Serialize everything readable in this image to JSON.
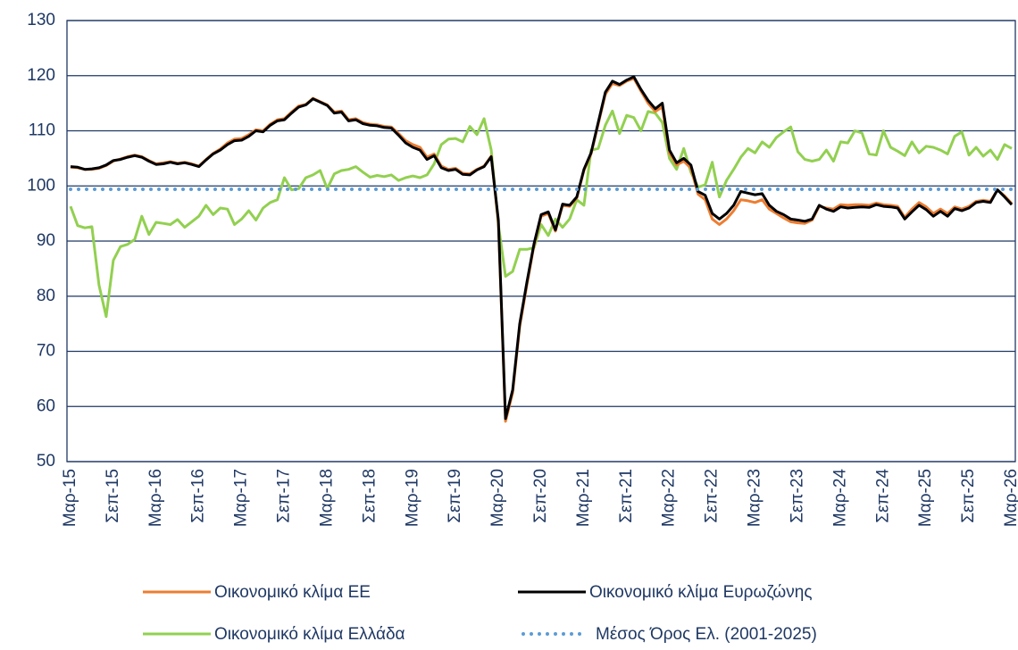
{
  "chart_data": {
    "type": "line",
    "categories": [
      "Μαρ-15",
      null,
      null,
      null,
      null,
      null,
      "Σεπ-15",
      null,
      null,
      null,
      null,
      null,
      "Μαρ-16",
      null,
      null,
      null,
      null,
      null,
      "Σεπ-16",
      null,
      null,
      null,
      null,
      null,
      "Μαρ-17",
      null,
      null,
      null,
      null,
      null,
      "Σεπ-17",
      null,
      null,
      null,
      null,
      null,
      "Μαρ-18",
      null,
      null,
      null,
      null,
      null,
      "Σεπ-18",
      null,
      null,
      null,
      null,
      null,
      "Μαρ-19",
      null,
      null,
      null,
      null,
      null,
      "Σεπ-19",
      null,
      null,
      null,
      null,
      null,
      "Μαρ-20",
      null,
      null,
      null,
      null,
      null,
      "Σεπ-20",
      null,
      null,
      null,
      null,
      null,
      "Μαρ-21",
      null,
      null,
      null,
      null,
      null,
      "Σεπ-21",
      null,
      null,
      null,
      null,
      null,
      "Μαρ-22",
      null,
      null,
      null,
      null,
      null,
      "Σεπ-22",
      null,
      null,
      null,
      null,
      null,
      "Μαρ-23",
      null,
      null,
      null,
      null,
      null,
      "Σεπ-23",
      null,
      null,
      null,
      null,
      null,
      "Μαρ-24",
      null,
      null,
      null,
      null,
      null,
      "Σεπ-24",
      null,
      null,
      null,
      null,
      null,
      "Μαρ-25",
      null,
      null,
      null,
      null,
      null,
      "Σεπ-25",
      null,
      null,
      null,
      null,
      null,
      "Μαρ-26"
    ],
    "series": [
      {
        "name": "Οικονομικό κλίμα ΕΕ",
        "color": "#ed7d31",
        "values": [
          103.4,
          103.3,
          103.0,
          103.0,
          103.2,
          103.7,
          104.5,
          104.9,
          105.3,
          105.6,
          105.3,
          104.6,
          104.0,
          104.2,
          104.4,
          104.1,
          104.3,
          104.0,
          103.6,
          104.8,
          105.9,
          106.7,
          107.8,
          108.5,
          108.6,
          109.3,
          110.2,
          110.0,
          111.2,
          112.0,
          112.2,
          113.4,
          114.5,
          114.8,
          115.9,
          115.3,
          114.7,
          113.4,
          113.6,
          112.0,
          112.2,
          111.5,
          111.2,
          111.1,
          110.8,
          110.7,
          109.5,
          108.2,
          107.5,
          107.0,
          105.2,
          105.8,
          103.6,
          103.0,
          103.2,
          102.3,
          102.2,
          103.0,
          103.6,
          105.4,
          93.3,
          57.3,
          62.5,
          74.5,
          82.0,
          89.2,
          94.5,
          95.0,
          91.8,
          96.5,
          96.3,
          97.8,
          102.8,
          105.8,
          111.2,
          116.6,
          118.6,
          118.2,
          119.0,
          119.5,
          117.2,
          115.0,
          113.5,
          114.3,
          106.0,
          103.8,
          104.5,
          103.2,
          98.5,
          97.5,
          94.0,
          93.0,
          94.0,
          95.5,
          97.5,
          97.3,
          97.0,
          97.5,
          95.8,
          95.0,
          94.2,
          93.5,
          93.3,
          93.2,
          93.8,
          96.3,
          96.0,
          95.8,
          96.6,
          96.5,
          96.6,
          96.6,
          96.5,
          96.9,
          96.6,
          96.5,
          96.3,
          94.3,
          95.8,
          97.0,
          96.2,
          95.0,
          95.8,
          95.0,
          96.2,
          95.8,
          96.3,
          97.2,
          97.4,
          97.2,
          99.3,
          98.2,
          96.8
        ]
      },
      {
        "name": "Οικονομικό κλίμα Ευρωζώνης",
        "color": "#000000",
        "values": [
          103.5,
          103.4,
          103.0,
          103.1,
          103.3,
          103.8,
          104.6,
          104.8,
          105.2,
          105.5,
          105.2,
          104.5,
          103.9,
          104.0,
          104.3,
          104.0,
          104.2,
          103.9,
          103.5,
          104.7,
          105.8,
          106.5,
          107.5,
          108.2,
          108.3,
          109.0,
          110.0,
          109.8,
          111.0,
          111.8,
          112.0,
          113.2,
          114.3,
          114.7,
          115.8,
          115.2,
          114.6,
          113.2,
          113.4,
          111.8,
          112.0,
          111.3,
          111.0,
          110.9,
          110.6,
          110.5,
          109.2,
          107.8,
          107.0,
          106.5,
          104.8,
          105.5,
          103.3,
          102.8,
          103.0,
          102.1,
          102.0,
          102.9,
          103.5,
          105.3,
          93.8,
          57.8,
          63.0,
          75.0,
          82.5,
          89.5,
          94.8,
          95.3,
          92.0,
          96.7,
          96.5,
          98.0,
          103.0,
          106.0,
          111.5,
          117.0,
          119.0,
          118.4,
          119.2,
          119.8,
          117.5,
          115.5,
          114.0,
          115.0,
          106.5,
          104.2,
          105.0,
          103.8,
          99.0,
          98.3,
          95.0,
          94.0,
          95.0,
          96.5,
          99.0,
          98.7,
          98.4,
          98.6,
          96.5,
          95.4,
          94.8,
          94.0,
          93.8,
          93.6,
          94.0,
          96.5,
          95.8,
          95.4,
          96.2,
          96.0,
          96.1,
          96.2,
          96.1,
          96.6,
          96.3,
          96.2,
          96.0,
          94.0,
          95.3,
          96.5,
          95.7,
          94.5,
          95.4,
          94.5,
          95.9,
          95.5,
          96.0,
          97.0,
          97.2,
          97.0,
          99.3,
          98.0,
          96.6
        ]
      },
      {
        "name": "Οικονομικό κλίμα Ελλάδα",
        "color": "#92d050",
        "values": [
          96.3,
          92.8,
          92.4,
          92.6,
          82.0,
          76.3,
          86.5,
          89.0,
          89.4,
          90.3,
          94.5,
          91.2,
          93.4,
          93.2,
          93.0,
          93.9,
          92.5,
          93.5,
          94.5,
          96.5,
          94.8,
          96.0,
          95.8,
          93.0,
          94.0,
          95.5,
          93.8,
          96.0,
          97.0,
          97.5,
          101.5,
          99.3,
          99.5,
          101.5,
          102.0,
          102.8,
          99.5,
          102.2,
          102.8,
          103.0,
          103.5,
          102.5,
          101.6,
          101.9,
          101.7,
          102.0,
          101.0,
          101.5,
          101.8,
          101.5,
          102.0,
          104.0,
          107.5,
          108.5,
          108.6,
          108.0,
          110.8,
          109.3,
          112.2,
          106.5,
          93.0,
          83.6,
          84.5,
          88.5,
          88.5,
          88.8,
          93.0,
          91.0,
          94.0,
          92.5,
          94.0,
          97.5,
          96.5,
          106.5,
          106.8,
          111.0,
          113.6,
          109.5,
          112.8,
          112.4,
          110.0,
          113.5,
          113.2,
          111.5,
          105.0,
          103.0,
          106.8,
          102.5,
          99.8,
          100.2,
          104.3,
          98.0,
          101.0,
          103.0,
          105.2,
          106.8,
          106.0,
          108.0,
          107.0,
          108.8,
          109.8,
          110.7,
          106.2,
          104.8,
          104.5,
          104.8,
          106.5,
          104.5,
          108.0,
          107.8,
          110.0,
          109.6,
          105.8,
          105.6,
          110.0,
          107.0,
          106.3,
          105.5,
          108.0,
          106.0,
          107.2,
          107.0,
          106.5,
          105.8,
          109.0,
          109.8,
          105.6,
          107.0,
          105.4,
          106.5,
          104.8,
          107.5,
          106.8
        ]
      }
    ],
    "mean_line": {
      "name": "Μέσος Όρος Ελ. (2001-2025)",
      "color": "#5b9bd5",
      "value": 99.4
    },
    "ylim": [
      50,
      130
    ],
    "yticks": [
      50,
      60,
      70,
      80,
      90,
      100,
      110,
      120,
      130
    ],
    "grid": true
  }
}
